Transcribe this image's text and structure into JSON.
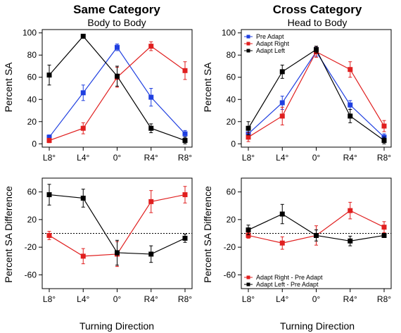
{
  "figure": {
    "col_titles": [
      "Same Category",
      "Cross Category"
    ],
    "col_subtitles": [
      "Body to Body",
      "Head to Body"
    ],
    "xlabel": "Turning Direction",
    "ylabels": [
      "Percent SA",
      "Percent SA Difference"
    ]
  },
  "colors": {
    "blue": "#1f3fe0",
    "red": "#e01f1f",
    "black": "#000000"
  },
  "chart_data": [
    {
      "id": "top-left",
      "type": "line",
      "title": "Same Category",
      "subtitle": "Body to Body",
      "xlabel": "",
      "ylabel": "Percent SA",
      "categories": [
        "L8°",
        "L4°",
        "0°",
        "R4°",
        "R8°"
      ],
      "ylim": [
        0,
        100
      ],
      "yticks": [
        0,
        20,
        40,
        60,
        80,
        100
      ],
      "reference_line": null,
      "legend": null,
      "series": [
        {
          "color": "blue",
          "values": [
            6,
            46,
            87,
            42,
            9
          ],
          "errors": [
            2,
            7,
            3,
            8,
            3
          ]
        },
        {
          "color": "red",
          "values": [
            3,
            14,
            60,
            88,
            66
          ],
          "errors": [
            2,
            5,
            9,
            4,
            8
          ]
        },
        {
          "color": "black",
          "values": [
            62,
            97,
            61,
            14,
            3
          ],
          "errors": [
            9,
            1,
            9,
            4,
            3
          ]
        }
      ]
    },
    {
      "id": "top-right",
      "type": "line",
      "title": "Cross Category",
      "subtitle": "Head to Body",
      "xlabel": "",
      "ylabel": "Percent SA",
      "categories": [
        "L8°",
        "L4°",
        "0°",
        "R4°",
        "R8°"
      ],
      "ylim": [
        0,
        100
      ],
      "yticks": [
        0,
        20,
        40,
        60,
        80,
        100
      ],
      "reference_line": null,
      "legend": {
        "position": "top-left",
        "entries": [
          {
            "label": "Pre Adapt",
            "color": "blue"
          },
          {
            "label": "Adapt Right",
            "color": "red"
          },
          {
            "label": "Adapt Left",
            "color": "black"
          }
        ]
      },
      "series": [
        {
          "name": "Pre Adapt",
          "color": "blue",
          "values": [
            9,
            37,
            83,
            35,
            6
          ],
          "errors": [
            4,
            6,
            4,
            4,
            3
          ]
        },
        {
          "name": "Adapt Right",
          "color": "red",
          "values": [
            6,
            25,
            83,
            67,
            16
          ],
          "errors": [
            4,
            8,
            5,
            7,
            5
          ]
        },
        {
          "name": "Adapt Left",
          "color": "black",
          "values": [
            14,
            65,
            85,
            25,
            3
          ],
          "errors": [
            6,
            6,
            3,
            6,
            3
          ]
        }
      ]
    },
    {
      "id": "bottom-left",
      "type": "line",
      "title": "",
      "xlabel": "Turning Direction",
      "ylabel": "Percent SA Difference",
      "categories": [
        "L8°",
        "L4°",
        "0°",
        "R4°",
        "R8°"
      ],
      "ylim": [
        -80,
        80
      ],
      "yticks": [
        -60,
        -20,
        20,
        60
      ],
      "reference_line": 0,
      "legend": null,
      "series": [
        {
          "color": "red",
          "values": [
            -3,
            -33,
            -30,
            46,
            56
          ],
          "errors": [
            6,
            11,
            18,
            16,
            12
          ]
        },
        {
          "color": "black",
          "values": [
            56,
            51,
            -28,
            -30,
            -7
          ],
          "errors": [
            15,
            13,
            18,
            12,
            6
          ]
        }
      ]
    },
    {
      "id": "bottom-right",
      "type": "line",
      "title": "",
      "xlabel": "Turning Direction",
      "ylabel": "Percent SA Difference",
      "categories": [
        "L8°",
        "L4°",
        "0°",
        "R4°",
        "R8°"
      ],
      "ylim": [
        -80,
        80
      ],
      "yticks": [
        -60,
        -20,
        20,
        60
      ],
      "reference_line": 0,
      "legend": {
        "position": "bottom-left",
        "entries": [
          {
            "label": "Adapt Right - Pre Adapt",
            "color": "red"
          },
          {
            "label": "Adapt Left - Pre Adapt",
            "color": "black"
          }
        ]
      },
      "series": [
        {
          "name": "Adapt Right - Pre Adapt",
          "color": "red",
          "values": [
            -3,
            -14,
            -3,
            33,
            9
          ],
          "errors": [
            4,
            9,
            14,
            12,
            8
          ]
        },
        {
          "name": "Adapt Left - Pre Adapt",
          "color": "black",
          "values": [
            5,
            28,
            -3,
            -11,
            -3
          ],
          "errors": [
            7,
            14,
            8,
            7,
            3
          ]
        }
      ]
    }
  ]
}
